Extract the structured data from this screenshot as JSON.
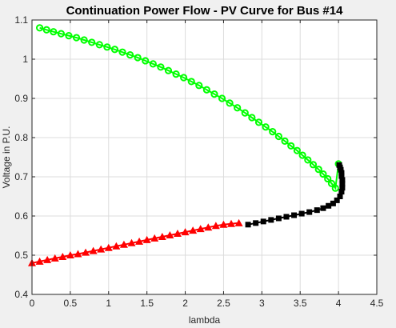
{
  "chart_data": {
    "type": "line",
    "title": "Continuation Power Flow - PV Curve for Bus #14",
    "xlabel": "lambda",
    "ylabel": "Voltage in P.U.",
    "xlim": [
      0,
      4.5
    ],
    "ylim": [
      0.4,
      1.1
    ],
    "xticks": [
      0,
      0.5,
      1,
      1.5,
      2,
      2.5,
      3,
      3.5,
      4,
      4.5
    ],
    "yticks": [
      0.4,
      0.5,
      0.6,
      0.7,
      0.8,
      0.9,
      1,
      1.1
    ],
    "xtick_labels": [
      "0",
      "0.5",
      "1",
      "1.5",
      "2",
      "2.5",
      "3",
      "3.5",
      "4",
      "4.5"
    ],
    "ytick_labels": [
      "0.4",
      "0.5",
      "0.6",
      "0.7",
      "0.8",
      "0.9",
      "1",
      "1.1"
    ],
    "grid": true,
    "colors": {
      "upper": "#00ff00",
      "corner": "#000000",
      "lower": "#ff0000"
    },
    "series": [
      {
        "marker": "circle",
        "color": "#00ff00",
        "x": [
          0.1,
          0.19,
          0.28,
          0.38,
          0.48,
          0.58,
          0.68,
          0.78,
          0.88,
          0.98,
          1.08,
          1.18,
          1.28,
          1.38,
          1.48,
          1.58,
          1.68,
          1.78,
          1.88,
          1.98,
          2.08,
          2.18,
          2.28,
          2.38,
          2.48,
          2.58,
          2.68,
          2.78,
          2.87,
          2.96,
          3.05,
          3.14,
          3.22,
          3.3,
          3.38,
          3.46,
          3.53,
          3.6,
          3.67,
          3.74,
          3.8,
          3.86,
          3.91,
          3.96,
          4.0
        ],
        "y": [
          1.08,
          1.075,
          1.07,
          1.065,
          1.06,
          1.055,
          1.049,
          1.043,
          1.037,
          1.031,
          1.025,
          1.018,
          1.011,
          1.004,
          0.996,
          0.988,
          0.98,
          0.971,
          0.962,
          0.953,
          0.943,
          0.933,
          0.922,
          0.911,
          0.9,
          0.888,
          0.876,
          0.863,
          0.851,
          0.839,
          0.827,
          0.815,
          0.803,
          0.791,
          0.779,
          0.767,
          0.755,
          0.743,
          0.731,
          0.719,
          0.707,
          0.695,
          0.683,
          0.671,
          0.733
        ]
      },
      {
        "marker": "square",
        "color": "#000000",
        "x": [
          2.82,
          2.92,
          3.02,
          3.12,
          3.22,
          3.32,
          3.42,
          3.52,
          3.62,
          3.72,
          3.8,
          3.87,
          3.93,
          3.98,
          4.02,
          4.04,
          4.05,
          4.05,
          4.05,
          4.04,
          4.04,
          4.03,
          4.02,
          4.01
        ],
        "y": [
          0.578,
          0.582,
          0.586,
          0.59,
          0.594,
          0.598,
          0.602,
          0.606,
          0.61,
          0.615,
          0.62,
          0.626,
          0.632,
          0.64,
          0.65,
          0.662,
          0.672,
          0.682,
          0.692,
          0.702,
          0.71,
          0.718,
          0.724,
          0.73
        ]
      },
      {
        "marker": "triangle",
        "color": "#ff0000",
        "x": [
          0.0,
          0.1,
          0.2,
          0.3,
          0.4,
          0.5,
          0.6,
          0.7,
          0.8,
          0.9,
          1.0,
          1.1,
          1.2,
          1.3,
          1.4,
          1.5,
          1.6,
          1.7,
          1.8,
          1.9,
          2.0,
          2.1,
          2.2,
          2.3,
          2.4,
          2.5,
          2.6,
          2.7
        ],
        "y": [
          0.48,
          0.484,
          0.488,
          0.492,
          0.496,
          0.5,
          0.503,
          0.507,
          0.511,
          0.515,
          0.519,
          0.523,
          0.527,
          0.531,
          0.535,
          0.539,
          0.543,
          0.547,
          0.551,
          0.555,
          0.559,
          0.563,
          0.567,
          0.571,
          0.575,
          0.578,
          0.58,
          0.582
        ]
      }
    ]
  }
}
